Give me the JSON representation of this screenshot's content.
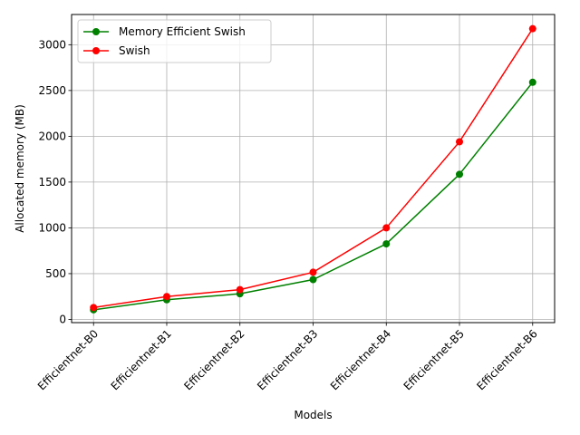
{
  "chart_data": {
    "type": "line",
    "title": "",
    "xlabel": "Models",
    "ylabel": "Allocated memory (MB)",
    "categories": [
      "Efficientnet-B0",
      "Efficientnet-B1",
      "Efficientnet-B2",
      "Efficientnet-B3",
      "Efficientnet-B4",
      "Efficientnet-B5",
      "Efficientnet-B6"
    ],
    "ylim": [
      -35,
      3330
    ],
    "yticks": [
      0,
      500,
      1000,
      1500,
      2000,
      2500,
      3000
    ],
    "grid": true,
    "legend_position": "top-left",
    "series": [
      {
        "name": "Memory Efficient Swish",
        "color": "#008000",
        "values": [
          105,
          215,
          280,
          435,
          825,
          1585,
          2590
        ]
      },
      {
        "name": "Swish",
        "color": "#ff0000",
        "values": [
          130,
          250,
          325,
          515,
          1000,
          1940,
          3175
        ]
      }
    ]
  }
}
